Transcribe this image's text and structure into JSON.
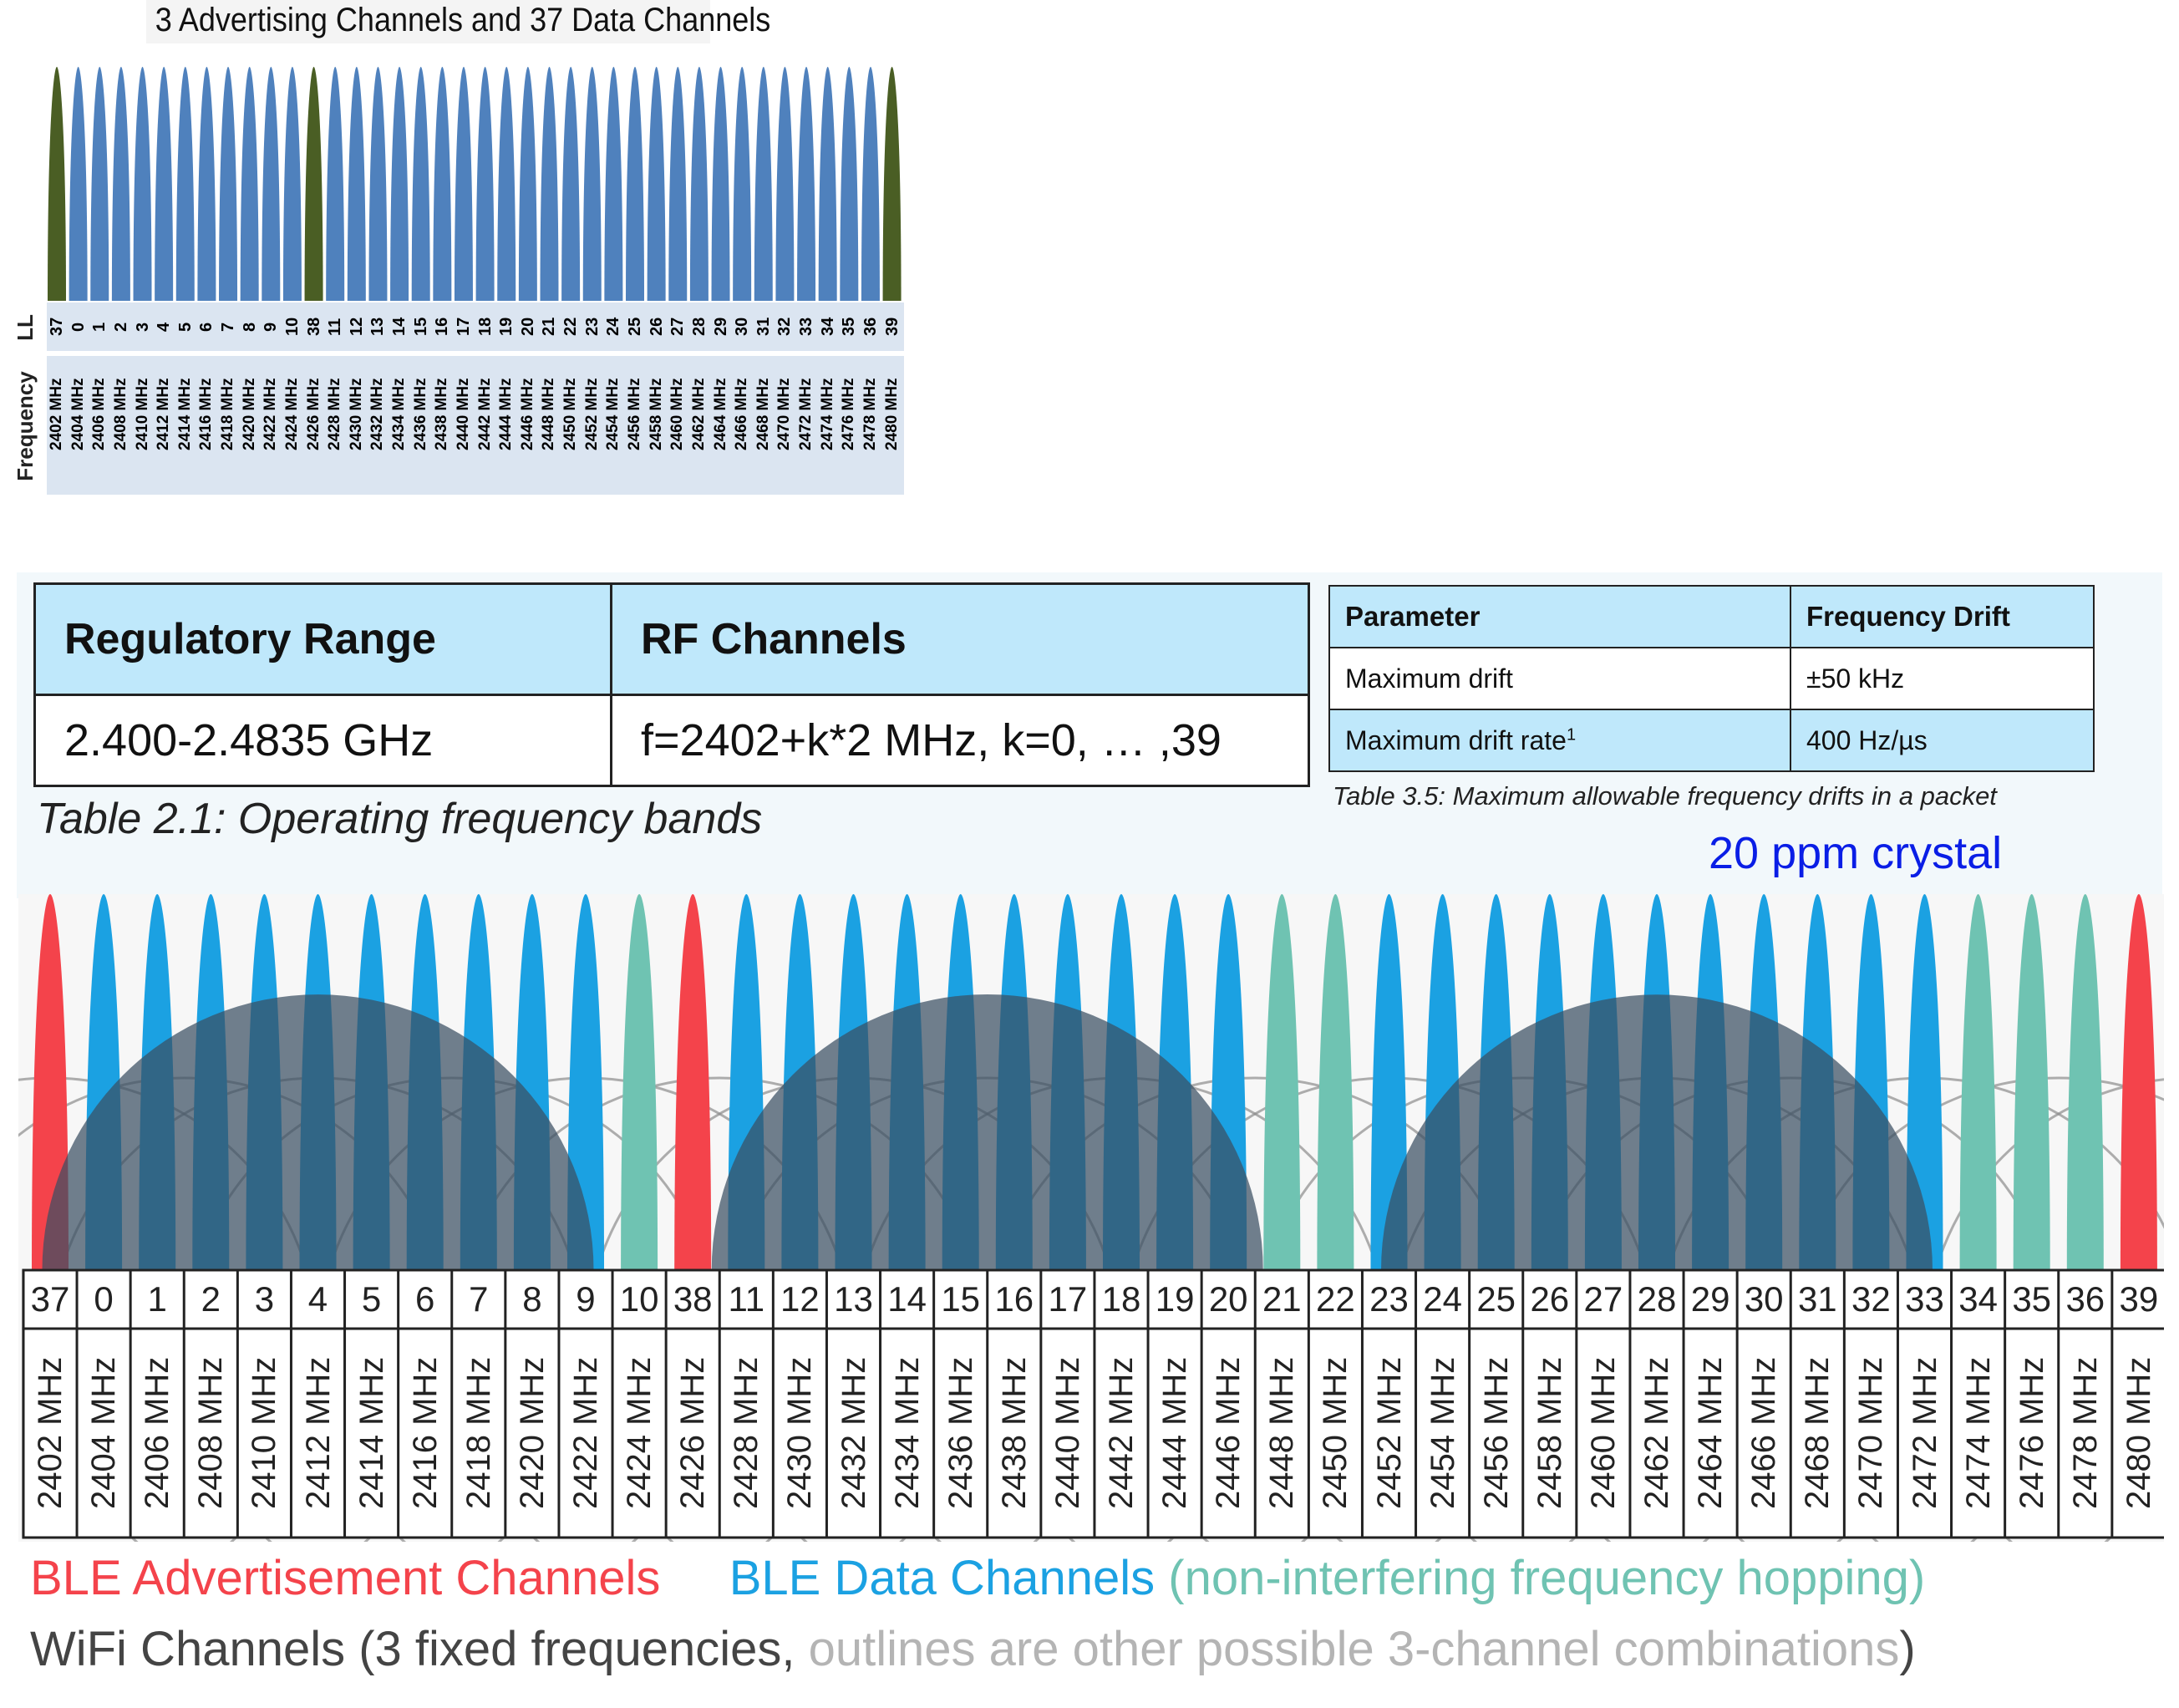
{
  "top_chart": {
    "title": "3 Advertising Channels and 37 Data Channels",
    "row_label_ll": "LL",
    "row_label_freq": "Frequency",
    "colors": {
      "advertising": "#4a5e24",
      "data": "#4f81bd",
      "band": "#dbe5f1"
    }
  },
  "channels": {
    "ll": [
      "37",
      "0",
      "1",
      "2",
      "3",
      "4",
      "5",
      "6",
      "7",
      "8",
      "9",
      "10",
      "38",
      "11",
      "12",
      "13",
      "14",
      "15",
      "16",
      "17",
      "18",
      "19",
      "20",
      "21",
      "22",
      "23",
      "24",
      "25",
      "26",
      "27",
      "28",
      "29",
      "30",
      "31",
      "32",
      "33",
      "34",
      "35",
      "36",
      "39"
    ],
    "freq": [
      "2402 MHz",
      "2404 MHz",
      "2406 MHz",
      "2408 MHz",
      "2410 MHz",
      "2412 MHz",
      "2414 MHz",
      "2416 MHz",
      "2418 MHz",
      "2420 MHz",
      "2422 MHz",
      "2424 MHz",
      "2426 MHz",
      "2428 MHz",
      "2430 MHz",
      "2432 MHz",
      "2434 MHz",
      "2436 MHz",
      "2438 MHz",
      "2440 MHz",
      "2442 MHz",
      "2444 MHz",
      "2446 MHz",
      "2448 MHz",
      "2450 MHz",
      "2452 MHz",
      "2454 MHz",
      "2456 MHz",
      "2458 MHz",
      "2460 MHz",
      "2462 MHz",
      "2464 MHz",
      "2466 MHz",
      "2468 MHz",
      "2470 MHz",
      "2472 MHz",
      "2474 MHz",
      "2476 MHz",
      "2478 MHz",
      "2480 MHz"
    ]
  },
  "regulatory_table": {
    "headers": [
      "Regulatory Range",
      "RF Channels"
    ],
    "row": [
      "2.400-2.4835 GHz",
      "f=2402+k*2 MHz, k=0, … ,39"
    ],
    "caption": "Table 2.1:  Operating frequency bands"
  },
  "drift_table": {
    "headers": [
      "Parameter",
      "Frequency Drift"
    ],
    "rows": [
      {
        "param": "Maximum drift",
        "sup": "",
        "value": "±50 kHz"
      },
      {
        "param": "Maximum drift rate",
        "sup": "1",
        "value": "400 Hz/µs"
      }
    ],
    "caption": "Table 3.5:  Maximum allowable frequency drifts in a packet"
  },
  "crystal_note": "20 ppm crystal",
  "bottom_diagram": {
    "channel_kinds": [
      "adv",
      "data",
      "data",
      "data",
      "data",
      "data",
      "data",
      "data",
      "data",
      "data",
      "data",
      "hop",
      "adv",
      "data",
      "data",
      "data",
      "data",
      "data",
      "data",
      "data",
      "data",
      "data",
      "data",
      "hop",
      "hop",
      "data",
      "data",
      "data",
      "data",
      "data",
      "data",
      "data",
      "data",
      "data",
      "data",
      "data",
      "hop",
      "hop",
      "hop",
      "adv"
    ],
    "wifi_centers_mhz": [
      2412,
      2437,
      2462
    ],
    "colors": {
      "advertising": "#f4434b",
      "data": "#1ba1e2",
      "hopping": "#6fc3b2",
      "wifi": "#3a4f63",
      "outline": "#8c8c8c"
    }
  },
  "legend": {
    "adv": "BLE Advertisement Channels",
    "data": "BLE Data Channels",
    "hop": "(non-interfering frequency hopping)",
    "wifi": "WiFi Channels (3 fixed frequencies, ",
    "outlines": "outlines are other possible 3-channel combinations",
    "close": ")",
    "colors": {
      "adv": "#f4434b",
      "data": "#1ba1e2",
      "hop": "#6fc3b2",
      "wifi": "#444444",
      "outlines": "#b4b4b4"
    }
  }
}
